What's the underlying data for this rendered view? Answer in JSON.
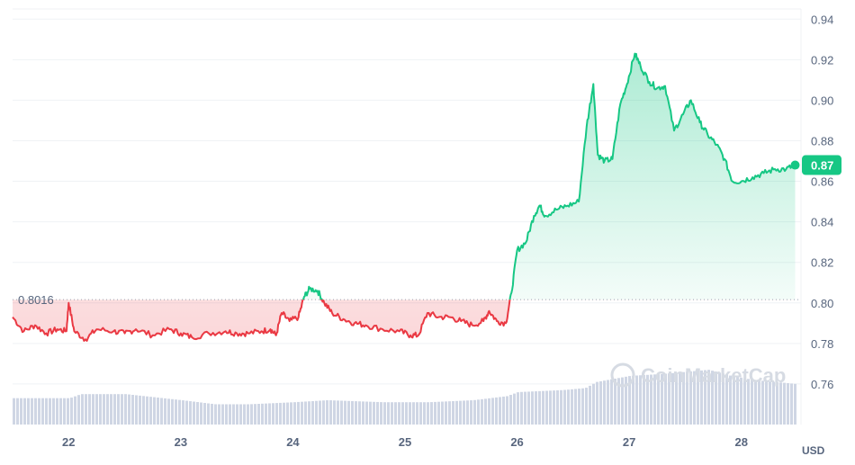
{
  "watermark": "CoinMarketCap",
  "chart_data": {
    "type": "area",
    "currency_label": "USD",
    "x_tick_labels": [
      "22",
      "23",
      "24",
      "25",
      "26",
      "27",
      "28"
    ],
    "y_tick_labels": [
      "0.76",
      "0.78",
      "0.80",
      "0.82",
      "0.84",
      "0.86",
      "0.88",
      "0.90",
      "0.92",
      "0.94"
    ],
    "ylim": [
      0.74,
      0.945
    ],
    "xlim": [
      21.5,
      28.5
    ],
    "grid": true,
    "reference_price": 0.8016,
    "reference_label": "0.8016",
    "current_price_label": "0.87",
    "colors": {
      "up": "#16c784",
      "down": "#ea3943",
      "volume": "#cfd6e4",
      "grid": "#eff2f5",
      "badge": "#16c784"
    },
    "price_series": {
      "name": "",
      "x": [
        21.5,
        21.6,
        21.7,
        21.8,
        21.9,
        21.98,
        22.0,
        22.05,
        22.15,
        22.25,
        22.4,
        22.5,
        22.6,
        22.75,
        22.9,
        23.0,
        23.1,
        23.25,
        23.4,
        23.5,
        23.6,
        23.72,
        23.8,
        23.85,
        23.9,
        23.97,
        24.05,
        24.1,
        24.15,
        24.22,
        24.28,
        24.35,
        24.45,
        24.55,
        24.65,
        24.8,
        24.95,
        25.05,
        25.12,
        25.2,
        25.3,
        25.4,
        25.5,
        25.6,
        25.7,
        25.75,
        25.82,
        25.9,
        25.95,
        26.0,
        26.08,
        26.15,
        26.2,
        26.25,
        26.35,
        26.45,
        26.55,
        26.62,
        26.68,
        26.72,
        26.78,
        26.85,
        26.92,
        26.98,
        27.05,
        27.1,
        27.18,
        27.25,
        27.32,
        27.4,
        27.48,
        27.55,
        27.63,
        27.7,
        27.78,
        27.85,
        27.92,
        28.0,
        28.1,
        28.2,
        28.3,
        28.4,
        28.48
      ],
      "y": [
        0.793,
        0.786,
        0.789,
        0.785,
        0.787,
        0.786,
        0.8,
        0.786,
        0.782,
        0.787,
        0.786,
        0.785,
        0.787,
        0.784,
        0.787,
        0.785,
        0.783,
        0.785,
        0.786,
        0.785,
        0.785,
        0.786,
        0.787,
        0.784,
        0.795,
        0.791,
        0.793,
        0.803,
        0.807,
        0.806,
        0.8,
        0.795,
        0.792,
        0.79,
        0.789,
        0.787,
        0.786,
        0.784,
        0.784,
        0.795,
        0.793,
        0.793,
        0.791,
        0.789,
        0.791,
        0.796,
        0.791,
        0.79,
        0.805,
        0.826,
        0.83,
        0.843,
        0.848,
        0.843,
        0.846,
        0.848,
        0.85,
        0.887,
        0.908,
        0.873,
        0.87,
        0.871,
        0.898,
        0.908,
        0.923,
        0.917,
        0.909,
        0.906,
        0.907,
        0.885,
        0.893,
        0.9,
        0.889,
        0.883,
        0.878,
        0.871,
        0.86,
        0.86,
        0.862,
        0.864,
        0.866,
        0.866,
        0.868
      ]
    },
    "volume_series": {
      "name": "",
      "x": [
        21.5,
        22.0,
        22.1,
        22.5,
        23.0,
        23.3,
        23.6,
        24.0,
        24.3,
        24.8,
        25.2,
        25.6,
        25.9,
        26.0,
        26.4,
        26.6,
        26.7,
        27.0,
        27.3,
        27.5,
        27.7,
        27.9,
        28.1,
        28.48
      ],
      "values": [
        0.753,
        0.753,
        0.755,
        0.755,
        0.752,
        0.75,
        0.75,
        0.751,
        0.752,
        0.751,
        0.751,
        0.752,
        0.754,
        0.756,
        0.757,
        0.758,
        0.761,
        0.764,
        0.765,
        0.766,
        0.767,
        0.764,
        0.762,
        0.76
      ]
    }
  }
}
